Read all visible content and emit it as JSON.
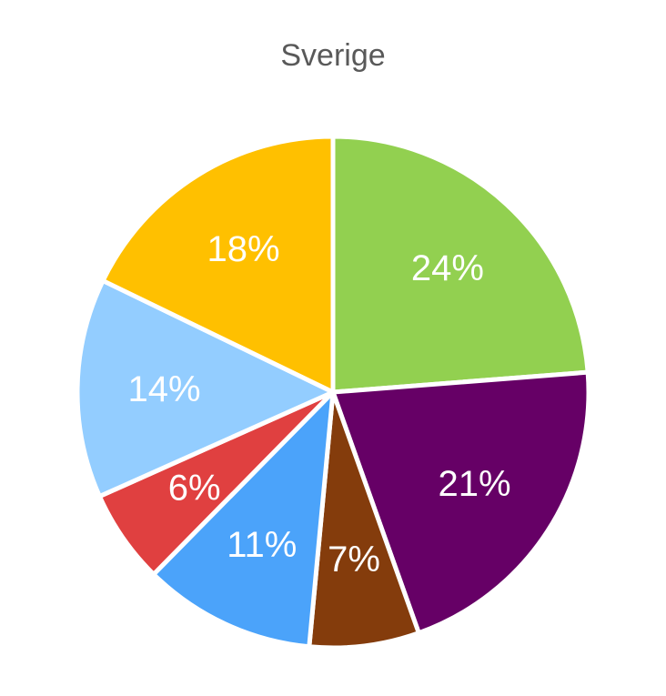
{
  "chart_data": {
    "type": "pie",
    "title": "Sverige",
    "start": "top, clockwise",
    "slices": [
      {
        "label": "24%",
        "value": 24,
        "color": "#92D050"
      },
      {
        "label": "21%",
        "value": 21,
        "color": "#660066"
      },
      {
        "label": "7%",
        "value": 7,
        "color": "#843C0C"
      },
      {
        "label": "11%",
        "value": 11,
        "color": "#4BA3FA"
      },
      {
        "label": "6%",
        "value": 6,
        "color": "#E04040"
      },
      {
        "label": "14%",
        "value": 14,
        "color": "#93CDFF"
      },
      {
        "label": "18%",
        "value": 18,
        "color": "#FFC000"
      }
    ]
  }
}
